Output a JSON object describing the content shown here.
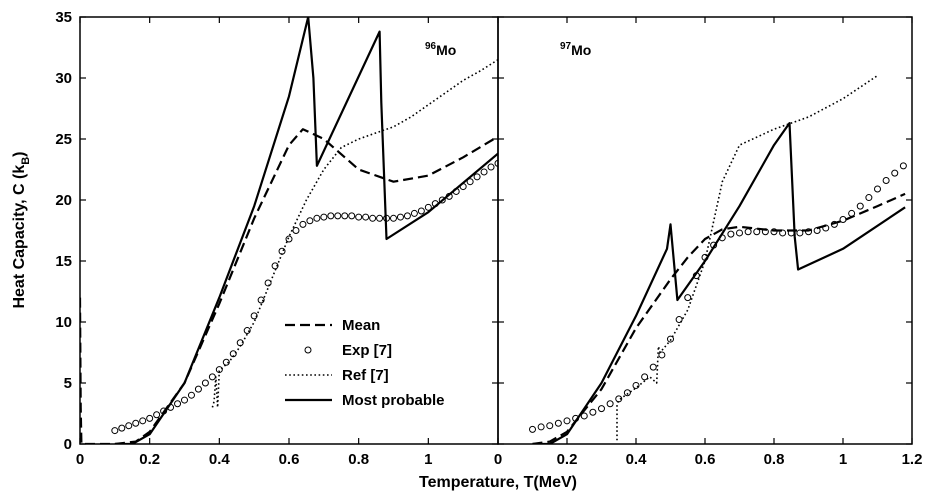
{
  "chart_data": [
    {
      "type": "line",
      "panel": "left",
      "annotation": {
        "mass": "96",
        "element": "Mo"
      },
      "xlim": [
        0,
        1.2
      ],
      "ylim": [
        0,
        35
      ],
      "xticks": [
        0,
        0.2,
        0.4,
        0.6,
        0.8,
        1
      ],
      "yticks": [
        0,
        5,
        10,
        15,
        20,
        25,
        30,
        35
      ],
      "ylabel": {
        "main": "Heat Capacity, C (k",
        "sub": "B",
        "close": ")"
      },
      "series": [
        {
          "name": "Mean",
          "style": "dashed",
          "x": [
            0,
            0.002,
            0.004,
            0.1,
            0.16,
            0.2,
            0.3,
            0.4,
            0.5,
            0.6,
            0.64,
            0.7,
            0.8,
            0.9,
            1.0,
            1.1,
            1.2
          ],
          "y": [
            12,
            3,
            0,
            0,
            0.2,
            1,
            5,
            11.5,
            18.5,
            24.5,
            25.8,
            25,
            22.5,
            21.5,
            22,
            23.5,
            25.2
          ]
        },
        {
          "name": "Exp [7]",
          "style": "circles",
          "x": [
            0.1,
            0.12,
            0.14,
            0.16,
            0.18,
            0.2,
            0.22,
            0.24,
            0.26,
            0.28,
            0.3,
            0.32,
            0.34,
            0.36,
            0.38,
            0.4,
            0.42,
            0.44,
            0.46,
            0.48,
            0.5,
            0.52,
            0.54,
            0.56,
            0.58,
            0.6,
            0.62,
            0.64,
            0.66,
            0.68,
            0.7,
            0.72,
            0.74,
            0.76,
            0.78,
            0.8,
            0.82,
            0.84,
            0.86,
            0.88,
            0.9,
            0.92,
            0.94,
            0.96,
            0.98,
            1.0,
            1.02,
            1.04,
            1.06,
            1.08,
            1.1,
            1.12,
            1.14,
            1.16,
            1.18,
            1.2
          ],
          "y": [
            1.1,
            1.3,
            1.5,
            1.7,
            1.9,
            2.1,
            2.4,
            2.7,
            3.0,
            3.3,
            3.6,
            4.0,
            4.5,
            5.0,
            5.5,
            6.1,
            6.7,
            7.4,
            8.3,
            9.3,
            10.5,
            11.8,
            13.2,
            14.6,
            15.8,
            16.8,
            17.5,
            18.0,
            18.3,
            18.5,
            18.6,
            18.7,
            18.7,
            18.7,
            18.7,
            18.6,
            18.6,
            18.5,
            18.5,
            18.5,
            18.5,
            18.6,
            18.7,
            18.9,
            19.1,
            19.4,
            19.7,
            20.0,
            20.3,
            20.7,
            21.1,
            21.5,
            21.9,
            22.3,
            22.7,
            23.0
          ]
        },
        {
          "name": "Ref [7]",
          "style": "dotted",
          "x": [
            0.38,
            0.385,
            0.39,
            0.395,
            0.4,
            0.43,
            0.46,
            0.5,
            0.55,
            0.6,
            0.65,
            0.7,
            0.75,
            0.8,
            0.85,
            0.9,
            0.95,
            1.0,
            1.05,
            1.1,
            1.15,
            1.2
          ],
          "y": [
            3,
            3.5,
            5.5,
            3,
            6,
            6.8,
            8,
            10,
            13.5,
            17,
            20,
            22.5,
            24.3,
            25,
            25.5,
            26,
            26.8,
            27.8,
            28.8,
            29.8,
            30.6,
            31.5
          ]
        },
        {
          "name": "Most probable",
          "style": "solid",
          "x": [
            0.1,
            0.15,
            0.2,
            0.3,
            0.4,
            0.5,
            0.6,
            0.655,
            0.67,
            0.68,
            0.86,
            0.865,
            0.88,
            1.0,
            1.2
          ],
          "y": [
            0,
            0,
            0.8,
            5,
            12,
            19.5,
            28.5,
            35,
            30,
            22.8,
            33.8,
            28,
            16.8,
            19,
            23.8
          ]
        }
      ]
    },
    {
      "type": "line",
      "panel": "right",
      "annotation": {
        "mass": "97",
        "element": "Mo"
      },
      "xlim": [
        0,
        1.2
      ],
      "ylim": [
        0,
        35
      ],
      "xticks": [
        0,
        0.2,
        0.4,
        0.6,
        0.8,
        1,
        1.2
      ],
      "xlabel": "Temperature, T(MeV)",
      "series": [
        {
          "name": "Mean",
          "style": "dashed",
          "x": [
            0.1,
            0.15,
            0.2,
            0.3,
            0.4,
            0.5,
            0.55,
            0.6,
            0.65,
            0.7,
            0.8,
            0.9,
            1.0,
            1.1,
            1.18
          ],
          "y": [
            0,
            0.2,
            1,
            4.5,
            9.5,
            13.5,
            15.3,
            16.8,
            17.6,
            17.8,
            17.5,
            17.5,
            18.3,
            19.5,
            20.5
          ]
        },
        {
          "name": "Exp [7]",
          "style": "circles",
          "x": [
            0.1,
            0.125,
            0.15,
            0.175,
            0.2,
            0.225,
            0.25,
            0.275,
            0.3,
            0.325,
            0.35,
            0.375,
            0.4,
            0.425,
            0.45,
            0.475,
            0.5,
            0.525,
            0.55,
            0.575,
            0.6,
            0.625,
            0.65,
            0.675,
            0.7,
            0.725,
            0.75,
            0.775,
            0.8,
            0.825,
            0.85,
            0.875,
            0.9,
            0.925,
            0.95,
            0.975,
            1.0,
            1.025,
            1.05,
            1.075,
            1.1,
            1.125,
            1.15,
            1.175
          ],
          "y": [
            1.2,
            1.4,
            1.5,
            1.7,
            1.9,
            2.1,
            2.3,
            2.6,
            2.9,
            3.3,
            3.7,
            4.2,
            4.8,
            5.5,
            6.3,
            7.3,
            8.6,
            10.2,
            12.0,
            13.8,
            15.3,
            16.3,
            16.9,
            17.2,
            17.3,
            17.4,
            17.4,
            17.4,
            17.4,
            17.3,
            17.3,
            17.3,
            17.4,
            17.5,
            17.7,
            18.0,
            18.4,
            18.9,
            19.5,
            20.2,
            20.9,
            21.6,
            22.2,
            22.8
          ]
        },
        {
          "name": "Ref [7]",
          "style": "dotted",
          "x": [
            0.345,
            0.345,
            0.35,
            0.36,
            0.4,
            0.44,
            0.46,
            0.465,
            0.47,
            0.5,
            0.55,
            0.6,
            0.65,
            0.7,
            0.8,
            0.9,
            1.0,
            1.1
          ],
          "y": [
            0.3,
            3.2,
            3.6,
            3.8,
            4.6,
            5.5,
            5,
            8,
            7.5,
            8.5,
            11,
            15,
            21.5,
            24.5,
            25.8,
            26.8,
            28.3,
            30.2
          ]
        },
        {
          "name": "Most probable",
          "style": "solid",
          "x": [
            0.1,
            0.15,
            0.2,
            0.3,
            0.4,
            0.49,
            0.5,
            0.52,
            0.6,
            0.7,
            0.8,
            0.845,
            0.86,
            0.87,
            1.0,
            1.18
          ],
          "y": [
            0,
            0,
            0.8,
            5,
            10.5,
            16,
            18,
            11.8,
            15,
            19.5,
            24.5,
            26.3,
            17,
            14.3,
            16,
            19.4
          ]
        }
      ]
    }
  ],
  "legend": {
    "placement": "bottom-right of left panel",
    "items": [
      "Mean",
      "Exp [7]",
      "Ref [7]",
      "Most probable"
    ]
  }
}
